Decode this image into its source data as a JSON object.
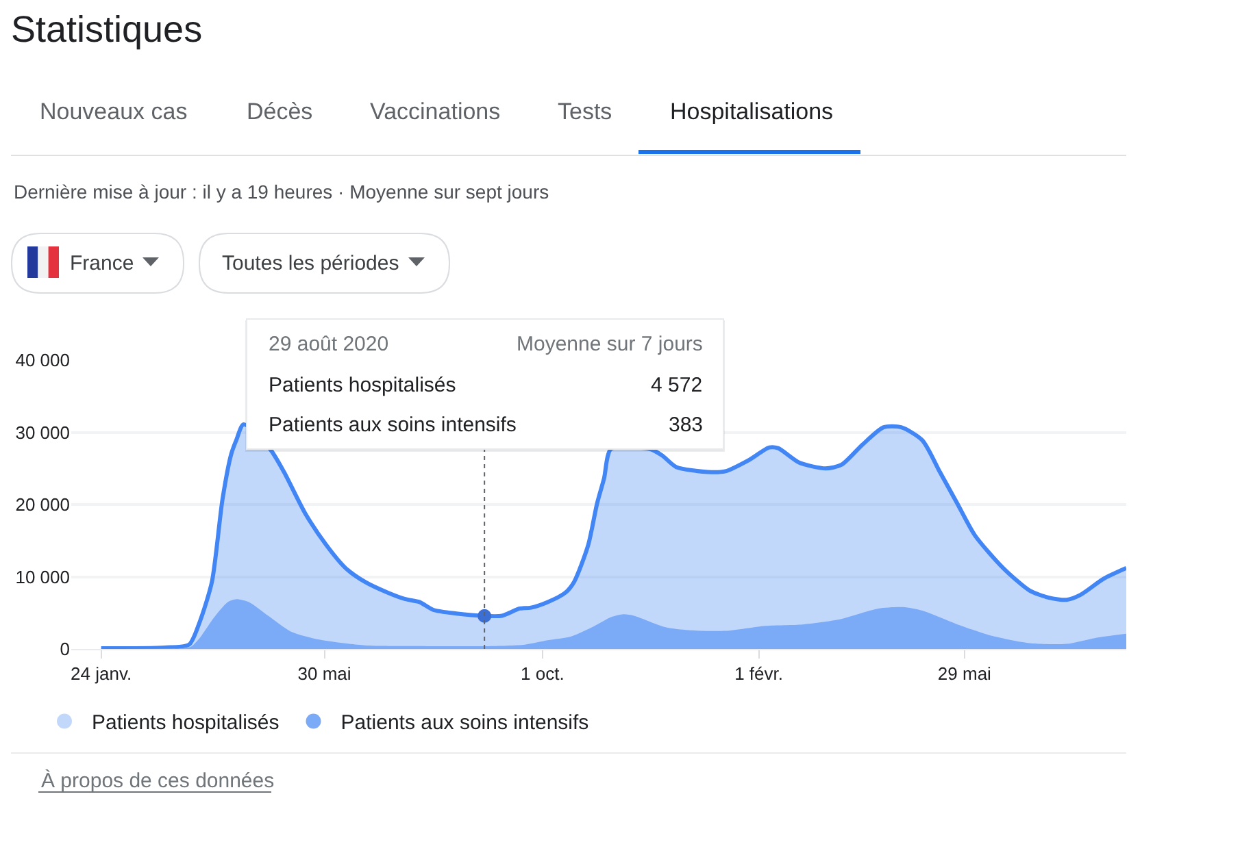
{
  "chart_data": {
    "type": "area",
    "title": "Statistiques",
    "subtitle": "Dernière mise à jour : il y a 19 heures · Moyenne sur sept jours",
    "series": [
      {
        "name": "Patients hospitalisés",
        "color": "#4285f4",
        "line_style": "solid",
        "x": [
          "2020-01-24",
          "2020-02-29",
          "2020-03-14",
          "2020-03-20",
          "2020-03-27",
          "2020-04-02",
          "2020-04-07",
          "2020-04-10",
          "2020-04-14",
          "2020-04-21",
          "2020-04-29",
          "2020-05-07",
          "2020-05-19",
          "2020-05-31",
          "2020-06-11",
          "2020-06-22",
          "2020-07-05",
          "2020-07-15",
          "2020-07-23",
          "2020-07-31",
          "2020-08-13",
          "2020-08-29",
          "2020-09-08",
          "2020-09-18",
          "2020-09-24",
          "2020-10-04",
          "2020-10-14",
          "2020-10-19",
          "2020-10-27",
          "2020-11-01",
          "2020-11-05",
          "2020-11-09",
          "2020-11-20",
          "2020-12-01",
          "2020-12-08",
          "2020-12-16",
          "2021-01-03",
          "2021-01-13",
          "2021-01-26",
          "2021-02-07",
          "2021-02-12",
          "2021-02-24",
          "2021-03-11",
          "2021-03-20",
          "2021-04-01",
          "2021-04-13",
          "2021-04-23",
          "2021-05-05",
          "2021-05-15",
          "2021-05-25",
          "2021-06-04",
          "2021-06-20",
          "2021-07-05",
          "2021-07-16",
          "2021-07-26",
          "2021-08-03",
          "2021-08-16",
          "2021-08-29"
        ],
        "values": [
          100,
          200,
          600,
          3700,
          9300,
          20700,
          27000,
          29000,
          31100,
          null,
          27700,
          24500,
          18800,
          14400,
          11200,
          9300,
          7800,
          6900,
          6500,
          5400,
          4900,
          4572,
          4600,
          5600,
          5700,
          6500,
          7800,
          9300,
          14400,
          20100,
          23600,
          27700,
          null,
          27700,
          26800,
          25200,
          24500,
          24600,
          26100,
          27900,
          27800,
          25800,
          25000,
          25500,
          28300,
          30700,
          30700,
          28900,
          24500,
          20100,
          15700,
          11200,
          8100,
          7100,
          6800,
          7500,
          9700,
          11200
        ]
      },
      {
        "name": "Patients aux soins intensifs",
        "color": "#7baaf7",
        "x": [
          "2020-01-24",
          "2020-03-10",
          "2020-03-15",
          "2020-03-20",
          "2020-03-28",
          "2020-04-05",
          "2020-04-10",
          "2020-04-17",
          "2020-04-28",
          "2020-05-11",
          "2020-05-27",
          "2020-06-22",
          "2020-07-20",
          "2020-08-29",
          "2020-09-21",
          "2020-10-04",
          "2020-10-17",
          "2020-10-30",
          "2020-11-09",
          "2020-11-16",
          "2020-11-22",
          "2020-12-10",
          "2020-12-23",
          "2021-01-13",
          "2021-02-05",
          "2021-02-26",
          "2021-03-19",
          "2021-04-10",
          "2021-04-24",
          "2021-05-05",
          "2021-05-25",
          "2021-06-14",
          "2021-07-05",
          "2021-07-26",
          "2021-08-11",
          "2021-08-29"
        ],
        "values": [
          0,
          100,
          300,
          1500,
          4300,
          6500,
          6900,
          6500,
          4600,
          2400,
          1300,
          500,
          400,
          383,
          600,
          1200,
          1700,
          3100,
          4400,
          4800,
          4600,
          3000,
          2600,
          2500,
          3200,
          3400,
          4100,
          5600,
          5800,
          5300,
          3400,
          1800,
          800,
          700,
          1500,
          2100
        ]
      },
      {
        "type": "scatter",
        "color": "#3b6fd4",
        "marker": "circle",
        "x": [
          "2020-08-29"
        ],
        "values": [
          4572
        ]
      }
    ],
    "xlim": [
      "2020-01-07",
      "2021-08-29"
    ],
    "xticks": [
      {
        "value": "2020-01-24",
        "label": "24 janv."
      },
      {
        "value": "2020-05-30",
        "label": "30 mai"
      },
      {
        "value": "2020-10-01",
        "label": "1 oct."
      },
      {
        "value": "2021-02-01",
        "label": "1 févr."
      },
      {
        "value": "2021-05-29",
        "label": "29 mai"
      }
    ],
    "ylim": [
      0,
      40000
    ],
    "yticks": [
      0,
      {
        "value": 10000,
        "label": "10 000"
      },
      {
        "value": 20000,
        "label": "20 000"
      },
      {
        "value": 30000,
        "label": "30 000"
      },
      {
        "value": 40000,
        "label": "40 000"
      }
    ],
    "grid": "y",
    "legend": "bottom",
    "ref_lines": [
      {
        "axis": "x",
        "value": "2020-08-29",
        "line_style": "dotted",
        "color": "#5f6368"
      }
    ],
    "annotations": [
      "Nouveaux cas",
      "Décès",
      "Vaccinations",
      "Tests",
      "Hospitalisations",
      "France",
      "Toutes les périodes",
      "29 août 2020",
      "Moyenne sur 7 jours",
      "4 572",
      "383",
      "À propos de ces données"
    ]
  }
}
